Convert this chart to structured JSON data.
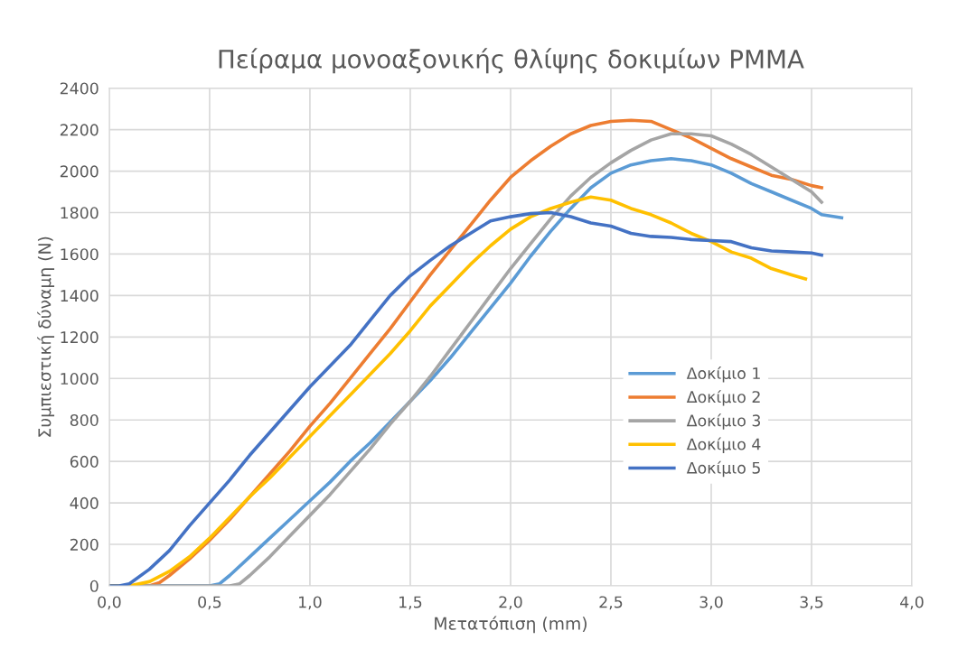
{
  "chart_data": {
    "type": "line",
    "title": "Πείραμα μονοαξονικής θλίψης δοκιμίων PMMA",
    "xlabel": "Μετατόπιση (mm)",
    "ylabel": "Συμπιεστική δύναμη (N)",
    "xlim": [
      0,
      4
    ],
    "ylim": [
      0,
      2400
    ],
    "xticks": [
      {
        "value": 0,
        "label": "0,0"
      },
      {
        "value": 0.5,
        "label": "0,5"
      },
      {
        "value": 1,
        "label": "1,0"
      },
      {
        "value": 1.5,
        "label": "1,5"
      },
      {
        "value": 2,
        "label": "2,0"
      },
      {
        "value": 2.5,
        "label": "2,5"
      },
      {
        "value": 3,
        "label": "3,0"
      },
      {
        "value": 3.5,
        "label": "3,5"
      },
      {
        "value": 4,
        "label": "4,0"
      }
    ],
    "yticks": [
      0,
      200,
      400,
      600,
      800,
      1000,
      1200,
      1400,
      1600,
      1800,
      2000,
      2200,
      2400
    ],
    "grid": true,
    "legend": "right",
    "marker": "none",
    "line_style": "solid",
    "series": [
      {
        "name": "Δοκίμιο 1",
        "color": "#5b9bd5",
        "x": [
          0,
          0.5,
          0.55,
          0.6,
          0.7,
          0.8,
          0.9,
          1.0,
          1.1,
          1.2,
          1.3,
          1.4,
          1.5,
          1.6,
          1.7,
          1.8,
          1.9,
          2.0,
          2.1,
          2.2,
          2.3,
          2.4,
          2.5,
          2.6,
          2.7,
          2.8,
          2.9,
          3.0,
          3.1,
          3.2,
          3.3,
          3.4,
          3.5,
          3.55,
          3.65
        ],
        "values": [
          0,
          0,
          10,
          50,
          140,
          230,
          320,
          410,
          500,
          600,
          690,
          790,
          890,
          990,
          1100,
          1220,
          1340,
          1460,
          1590,
          1710,
          1820,
          1920,
          1990,
          2030,
          2050,
          2060,
          2050,
          2030,
          1990,
          1940,
          1900,
          1860,
          1820,
          1790,
          1775
        ]
      },
      {
        "name": "Δοκίμιο 2",
        "color": "#ed7d31",
        "x": [
          0,
          0.2,
          0.25,
          0.3,
          0.4,
          0.5,
          0.6,
          0.7,
          0.8,
          0.9,
          1.0,
          1.1,
          1.2,
          1.3,
          1.4,
          1.5,
          1.6,
          1.7,
          1.8,
          1.9,
          2.0,
          2.1,
          2.2,
          2.3,
          2.4,
          2.5,
          2.6,
          2.7,
          2.8,
          2.9,
          3.0,
          3.1,
          3.2,
          3.3,
          3.4,
          3.5,
          3.55
        ],
        "values": [
          0,
          0,
          15,
          50,
          130,
          220,
          320,
          430,
          540,
          650,
          770,
          880,
          1000,
          1120,
          1240,
          1370,
          1500,
          1620,
          1740,
          1860,
          1970,
          2050,
          2120,
          2180,
          2220,
          2240,
          2245,
          2240,
          2200,
          2160,
          2110,
          2060,
          2020,
          1980,
          1960,
          1930,
          1920
        ]
      },
      {
        "name": "Δοκίμιο 3",
        "color": "#a5a5a5",
        "x": [
          0,
          0.6,
          0.65,
          0.7,
          0.8,
          0.9,
          1.0,
          1.1,
          1.2,
          1.3,
          1.4,
          1.5,
          1.6,
          1.7,
          1.8,
          1.9,
          2.0,
          2.1,
          2.2,
          2.3,
          2.4,
          2.5,
          2.6,
          2.7,
          2.8,
          2.9,
          3.0,
          3.1,
          3.2,
          3.3,
          3.4,
          3.5,
          3.55
        ],
        "values": [
          0,
          0,
          10,
          50,
          140,
          240,
          340,
          440,
          550,
          660,
          780,
          890,
          1010,
          1140,
          1270,
          1400,
          1530,
          1650,
          1770,
          1880,
          1970,
          2040,
          2100,
          2150,
          2180,
          2180,
          2170,
          2130,
          2080,
          2020,
          1960,
          1900,
          1850
        ]
      },
      {
        "name": "Δοκίμιο 4",
        "color": "#ffc000",
        "x": [
          0,
          0.1,
          0.2,
          0.3,
          0.4,
          0.5,
          0.6,
          0.7,
          0.8,
          0.9,
          1.0,
          1.1,
          1.2,
          1.3,
          1.4,
          1.5,
          1.6,
          1.7,
          1.8,
          1.9,
          2.0,
          2.1,
          2.2,
          2.3,
          2.4,
          2.5,
          2.6,
          2.7,
          2.8,
          2.9,
          3.0,
          3.1,
          3.2,
          3.3,
          3.4,
          3.47
        ],
        "values": [
          0,
          0,
          20,
          70,
          140,
          230,
          330,
          430,
          520,
          620,
          720,
          820,
          920,
          1020,
          1120,
          1230,
          1350,
          1450,
          1550,
          1640,
          1720,
          1780,
          1820,
          1850,
          1875,
          1860,
          1820,
          1790,
          1750,
          1700,
          1660,
          1610,
          1580,
          1530,
          1500,
          1480
        ]
      },
      {
        "name": "Δοκίμιο 5",
        "color": "#4472c4",
        "x": [
          0,
          0.05,
          0.1,
          0.2,
          0.3,
          0.4,
          0.5,
          0.6,
          0.7,
          0.8,
          0.9,
          1.0,
          1.1,
          1.2,
          1.3,
          1.4,
          1.5,
          1.6,
          1.7,
          1.8,
          1.9,
          2.0,
          2.1,
          2.2,
          2.3,
          2.4,
          2.5,
          2.6,
          2.7,
          2.8,
          2.9,
          3.0,
          3.1,
          3.2,
          3.3,
          3.4,
          3.5,
          3.55
        ],
        "values": [
          0,
          0,
          10,
          80,
          170,
          290,
          400,
          510,
          630,
          740,
          850,
          960,
          1060,
          1160,
          1280,
          1400,
          1495,
          1570,
          1640,
          1700,
          1760,
          1780,
          1795,
          1800,
          1780,
          1750,
          1735,
          1700,
          1685,
          1680,
          1670,
          1665,
          1660,
          1630,
          1615,
          1610,
          1605,
          1595
        ]
      }
    ]
  }
}
